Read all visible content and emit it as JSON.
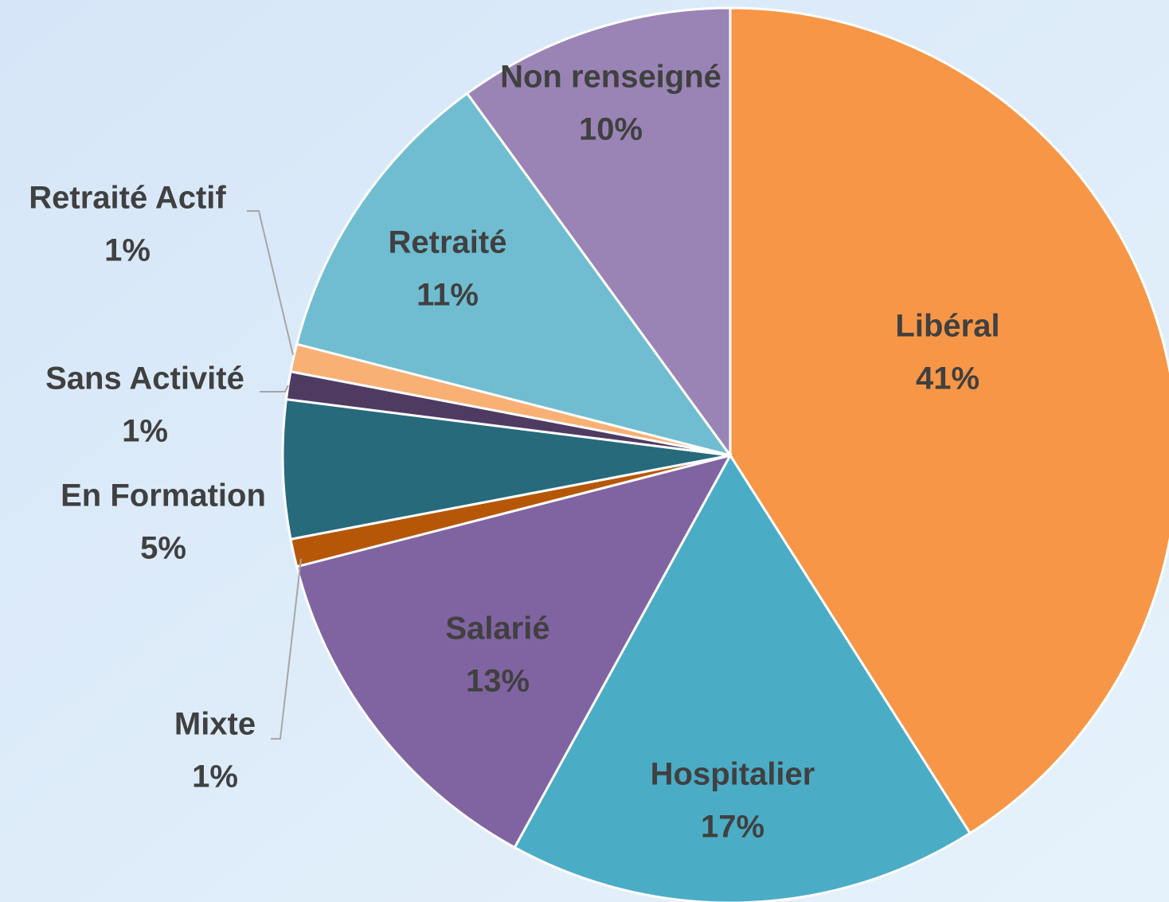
{
  "chart_data": {
    "type": "pie",
    "categories": [
      "Libéral",
      "Hospitalier",
      "Salarié",
      "Mixte",
      "En Formation",
      "Sans Activité",
      "Retraité Actif",
      "Retraité",
      "Non renseigné"
    ],
    "values": [
      41,
      17,
      13,
      1,
      5,
      1,
      1,
      11,
      10
    ],
    "value_labels": [
      "41%",
      "17%",
      "13%",
      "1%",
      "5%",
      "1%",
      "1%",
      "11%",
      "10%"
    ],
    "colors": [
      "#f79646",
      "#4bacc6",
      "#8064a2",
      "#b65708",
      "#276a7c",
      "#4f3b62",
      "#f9b074",
      "#70bdd1",
      "#9a84b5"
    ]
  }
}
